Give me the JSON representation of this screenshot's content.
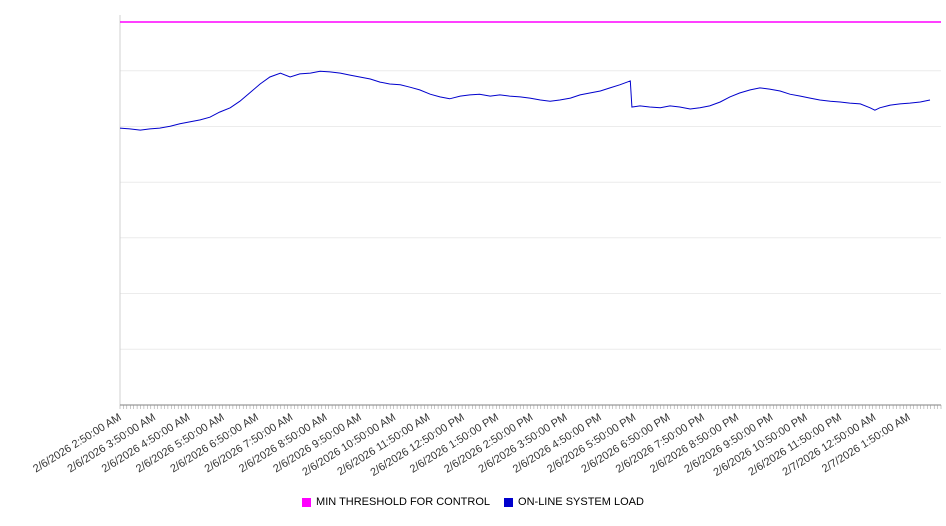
{
  "chart_data": {
    "type": "line",
    "title": "",
    "xlabel": "",
    "ylabel": "",
    "legend_position": "bottom",
    "grid": true,
    "x_axis": {
      "label_rotation": -32,
      "categories": [
        "2/6/2026 2:50:00 AM",
        "2/6/2026 3:50:00 AM",
        "2/6/2026 4:50:00 AM",
        "2/6/2026 5:50:00 AM",
        "2/6/2026 6:50:00 AM",
        "2/6/2026 7:50:00 AM",
        "2/6/2026 8:50:00 AM",
        "2/6/2026 9:50:00 AM",
        "2/6/2026 10:50:00 AM",
        "2/6/2026 11:50:00 AM",
        "2/6/2026 12:50:00 PM",
        "2/6/2026 1:50:00 PM",
        "2/6/2026 2:50:00 PM",
        "2/6/2026 3:50:00 PM",
        "2/6/2026 4:50:00 PM",
        "2/6/2026 5:50:00 PM",
        "2/6/2026 6:50:00 PM",
        "2/6/2026 7:50:00 PM",
        "2/6/2026 8:50:00 PM",
        "2/6/2026 9:50:00 PM",
        "2/6/2026 10:50:00 PM",
        "2/6/2026 11:50:00 PM",
        "2/7/2026 12:50:00 AM",
        "2/7/2026 1:50:00 AM"
      ]
    },
    "y_axis": {
      "min": 0,
      "max": 100,
      "ticks_visible": false,
      "gridlines": [
        14.3,
        28.6,
        42.9,
        57.1,
        71.4,
        85.7
      ]
    },
    "series": [
      {
        "name": "MIN THRESHOLD FOR CONTROL",
        "color": "#ff00ff",
        "kind": "threshold",
        "value": 98.2
      },
      {
        "name": "ON-LINE SYSTEM LOAD",
        "color": "#0000cd",
        "kind": "line",
        "points": [
          [
            0,
            71.0
          ],
          [
            1.2,
            70.8
          ],
          [
            2.5,
            70.5
          ],
          [
            3.7,
            70.8
          ],
          [
            4.9,
            71.0
          ],
          [
            6.2,
            71.5
          ],
          [
            7.4,
            72.1
          ],
          [
            8.6,
            72.6
          ],
          [
            9.9,
            73.1
          ],
          [
            11.1,
            73.8
          ],
          [
            12.3,
            75.1
          ],
          [
            13.6,
            76.2
          ],
          [
            14.8,
            77.9
          ],
          [
            16.0,
            80.0
          ],
          [
            17.3,
            82.3
          ],
          [
            18.5,
            84.1
          ],
          [
            19.8,
            85.1
          ],
          [
            21.0,
            84.1
          ],
          [
            22.2,
            84.9
          ],
          [
            23.5,
            85.1
          ],
          [
            24.7,
            85.6
          ],
          [
            25.9,
            85.4
          ],
          [
            27.2,
            85.1
          ],
          [
            28.4,
            84.6
          ],
          [
            29.6,
            84.1
          ],
          [
            30.9,
            83.6
          ],
          [
            32.1,
            82.8
          ],
          [
            33.3,
            82.3
          ],
          [
            34.6,
            82.1
          ],
          [
            35.8,
            81.5
          ],
          [
            37.0,
            80.8
          ],
          [
            38.3,
            79.7
          ],
          [
            39.5,
            79.0
          ],
          [
            40.7,
            78.5
          ],
          [
            42.0,
            79.2
          ],
          [
            43.2,
            79.5
          ],
          [
            44.4,
            79.7
          ],
          [
            45.7,
            79.2
          ],
          [
            46.9,
            79.5
          ],
          [
            48.1,
            79.2
          ],
          [
            49.4,
            79.0
          ],
          [
            50.6,
            78.7
          ],
          [
            51.9,
            78.2
          ],
          [
            53.1,
            77.9
          ],
          [
            54.3,
            78.2
          ],
          [
            55.6,
            78.7
          ],
          [
            56.8,
            79.5
          ],
          [
            58.0,
            80.0
          ],
          [
            59.3,
            80.5
          ],
          [
            60.5,
            81.3
          ],
          [
            61.7,
            82.1
          ],
          [
            63.0,
            83.1
          ],
          [
            63.2,
            76.4
          ],
          [
            64.2,
            76.7
          ],
          [
            65.4,
            76.4
          ],
          [
            66.7,
            76.2
          ],
          [
            67.9,
            76.7
          ],
          [
            69.1,
            76.4
          ],
          [
            70.4,
            75.9
          ],
          [
            71.6,
            76.2
          ],
          [
            72.8,
            76.7
          ],
          [
            74.1,
            77.7
          ],
          [
            75.3,
            79.0
          ],
          [
            76.5,
            80.0
          ],
          [
            77.8,
            80.8
          ],
          [
            79.0,
            81.3
          ],
          [
            80.2,
            81.0
          ],
          [
            81.5,
            80.5
          ],
          [
            82.7,
            79.7
          ],
          [
            84.0,
            79.2
          ],
          [
            85.2,
            78.7
          ],
          [
            86.4,
            78.2
          ],
          [
            87.7,
            77.9
          ],
          [
            88.9,
            77.7
          ],
          [
            90.1,
            77.4
          ],
          [
            91.4,
            77.2
          ],
          [
            92.6,
            76.2
          ],
          [
            93.2,
            75.6
          ],
          [
            93.8,
            76.2
          ],
          [
            95.1,
            76.9
          ],
          [
            96.3,
            77.2
          ],
          [
            97.5,
            77.4
          ],
          [
            98.8,
            77.7
          ],
          [
            100,
            78.2
          ]
        ]
      }
    ]
  },
  "legend": {
    "items": [
      {
        "label": "MIN THRESHOLD FOR CONTROL",
        "color": "#ff00ff"
      },
      {
        "label": "ON-LINE SYSTEM LOAD",
        "color": "#0000cd"
      }
    ]
  }
}
